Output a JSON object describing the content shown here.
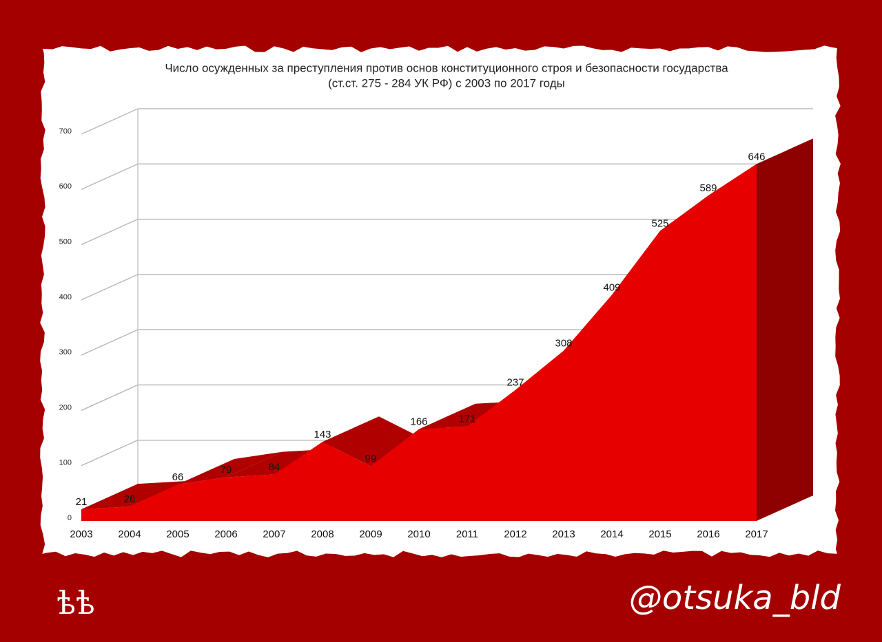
{
  "chart_data": {
    "type": "area3d",
    "title": "Число осужденных за преступления против основ конституционного строя и безопасности государства",
    "subtitle": "(ст.ст. 275 - 284 УК РФ) с 2003 по 2017 годы",
    "categories": [
      "2003",
      "2004",
      "2005",
      "2006",
      "2007",
      "2008",
      "2009",
      "2010",
      "2011",
      "2012",
      "2013",
      "2014",
      "2015",
      "2016",
      "2017"
    ],
    "values": [
      21,
      26,
      66,
      79,
      84,
      143,
      99,
      166,
      171,
      237,
      308,
      409,
      525,
      589,
      646
    ],
    "color": "#e60000",
    "ylim": [
      0,
      700
    ],
    "yticks": [
      0,
      100,
      200,
      300,
      400,
      500,
      600,
      700
    ],
    "grid": true
  },
  "logo": "ѣѣ",
  "handle": "@otsuka_bld"
}
